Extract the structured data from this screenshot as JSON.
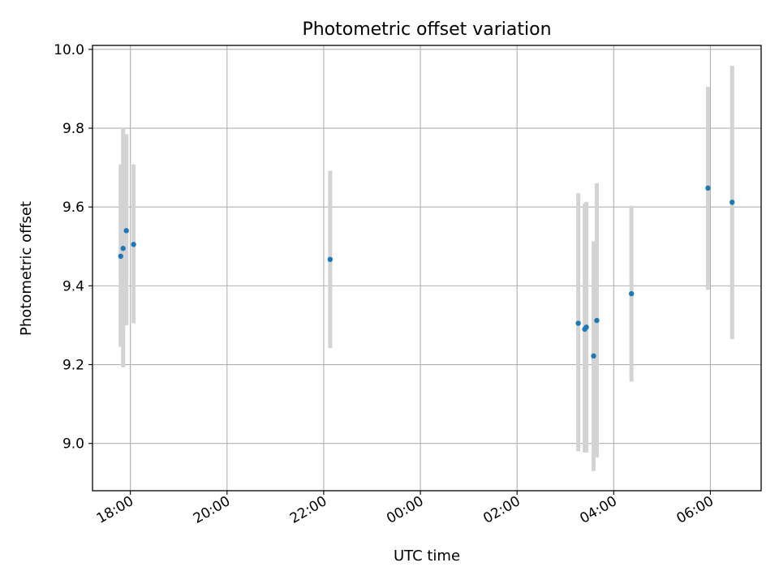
{
  "chart_data": {
    "type": "scatter",
    "title": "Photometric offset variation",
    "xlabel": "UTC time",
    "ylabel": "Photometric offset",
    "x_axis_type": "time",
    "x_tick_labels": [
      "18:00",
      "20:00",
      "22:00",
      "00:00",
      "02:00",
      "04:00",
      "06:00"
    ],
    "x_ticks": [
      "2000-01-01T18:00",
      "2000-01-01T20:00",
      "2000-01-01T22:00",
      "2000-01-02T00:00",
      "2000-01-02T02:00",
      "2000-01-02T04:00",
      "2000-01-02T06:00"
    ],
    "xlim": [
      "2000-01-01T17:13",
      "2000-01-02T07:03"
    ],
    "y_ticks": [
      9.0,
      9.2,
      9.4,
      9.6,
      9.8,
      10.0
    ],
    "y_tick_labels": [
      "9.0",
      "9.2",
      "9.4",
      "9.6",
      "9.8",
      "10.0"
    ],
    "ylim": [
      8.88,
      10.01
    ],
    "grid": true,
    "marker_color": "#1f77b4",
    "errorbar_color": "#d3d3d3",
    "points": [
      {
        "x": "2000-01-01T17:48",
        "y": 9.475,
        "ylo": 9.245,
        "yhi": 9.708
      },
      {
        "x": "2000-01-01T17:51",
        "y": 9.495,
        "ylo": 9.193,
        "yhi": 9.8
      },
      {
        "x": "2000-01-01T17:55",
        "y": 9.54,
        "ylo": 9.3,
        "yhi": 9.785
      },
      {
        "x": "2000-01-01T18:04",
        "y": 9.505,
        "ylo": 9.305,
        "yhi": 9.708
      },
      {
        "x": "2000-01-01T22:08",
        "y": 9.467,
        "ylo": 9.242,
        "yhi": 9.692
      },
      {
        "x": "2000-01-02T03:16",
        "y": 9.305,
        "ylo": 8.98,
        "yhi": 9.635
      },
      {
        "x": "2000-01-02T03:24",
        "y": 9.29,
        "ylo": 8.977,
        "yhi": 9.608
      },
      {
        "x": "2000-01-02T03:26",
        "y": 9.295,
        "ylo": 8.977,
        "yhi": 9.613
      },
      {
        "x": "2000-01-02T03:35",
        "y": 9.222,
        "ylo": 8.93,
        "yhi": 9.513
      },
      {
        "x": "2000-01-02T03:39",
        "y": 9.312,
        "ylo": 8.965,
        "yhi": 9.66
      },
      {
        "x": "2000-01-02T04:22",
        "y": 9.38,
        "ylo": 9.157,
        "yhi": 9.603
      },
      {
        "x": "2000-01-02T05:57",
        "y": 9.648,
        "ylo": 9.39,
        "yhi": 9.905
      },
      {
        "x": "2000-01-02T06:27",
        "y": 9.612,
        "ylo": 9.265,
        "yhi": 9.958
      }
    ]
  }
}
